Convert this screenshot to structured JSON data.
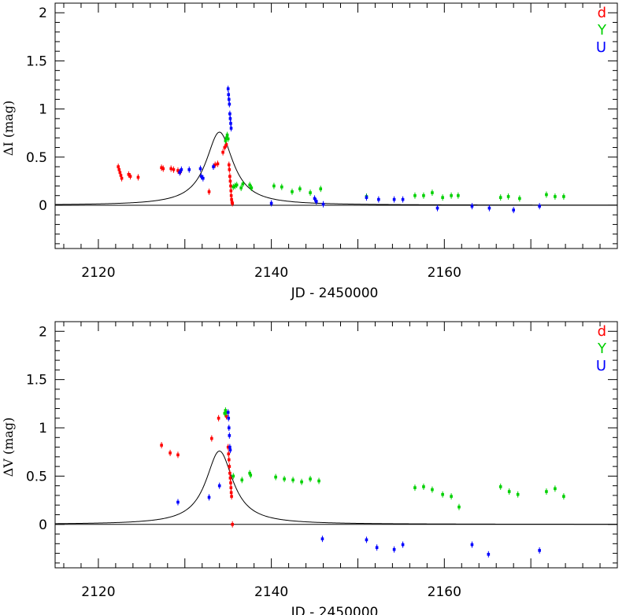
{
  "chart_data": [
    {
      "type": "scatter",
      "panel": "top",
      "xlabel": "JD - 2450000",
      "ylabel": "ΔI (mag)",
      "xlim": [
        2115,
        2180
      ],
      "ylim": [
        -0.45,
        2.1
      ],
      "xticks": [
        2120,
        2140,
        2160
      ],
      "yticks": [
        0,
        0.5,
        1,
        1.5,
        2
      ],
      "xtick_labels": [
        "2120",
        "2140",
        "2160"
      ],
      "ytick_labels": [
        "0",
        "0.5",
        "1",
        "1.5",
        "2"
      ],
      "legend": {
        "placement": "top-right",
        "labels": [
          "d",
          "Y",
          "U"
        ]
      },
      "model_curve": {
        "t0": 2134.0,
        "peak": 0.76,
        "tau": 1.9,
        "baseline": 0.0
      },
      "series": [
        {
          "name": "d",
          "color": "#ff0000",
          "points": [
            [
              2122.3,
              0.4
            ],
            [
              2122.4,
              0.37
            ],
            [
              2122.5,
              0.34
            ],
            [
              2122.6,
              0.31
            ],
            [
              2122.7,
              0.28
            ],
            [
              2123.5,
              0.32
            ],
            [
              2123.7,
              0.3
            ],
            [
              2124.6,
              0.29
            ],
            [
              2127.3,
              0.39
            ],
            [
              2127.5,
              0.38
            ],
            [
              2128.4,
              0.38
            ],
            [
              2128.7,
              0.37
            ],
            [
              2129.2,
              0.36
            ],
            [
              2129.5,
              0.35
            ],
            [
              2132.8,
              0.14
            ],
            [
              2133.5,
              0.42
            ],
            [
              2133.8,
              0.43
            ],
            [
              2134.4,
              0.55
            ],
            [
              2134.6,
              0.6
            ],
            [
              2134.8,
              0.63
            ],
            [
              2135.1,
              0.42
            ],
            [
              2135.15,
              0.37
            ],
            [
              2135.2,
              0.3
            ],
            [
              2135.25,
              0.25
            ],
            [
              2135.3,
              0.2
            ],
            [
              2135.33,
              0.15
            ],
            [
              2135.36,
              0.1
            ],
            [
              2135.4,
              0.06
            ],
            [
              2135.45,
              0.03
            ],
            [
              2135.5,
              0.02
            ]
          ]
        },
        {
          "name": "Y",
          "color": "#00d000",
          "points": [
            [
              2134.7,
              0.67
            ],
            [
              2134.8,
              0.7
            ],
            [
              2134.9,
              0.73
            ],
            [
              2135.0,
              0.69
            ],
            [
              2135.6,
              0.19
            ],
            [
              2135.8,
              0.2
            ],
            [
              2136.0,
              0.21
            ],
            [
              2136.5,
              0.18
            ],
            [
              2136.7,
              0.22
            ],
            [
              2137.5,
              0.21
            ],
            [
              2137.7,
              0.18
            ],
            [
              2140.3,
              0.2
            ],
            [
              2141.2,
              0.19
            ],
            [
              2142.4,
              0.14
            ],
            [
              2143.3,
              0.17
            ],
            [
              2144.5,
              0.13
            ],
            [
              2145.7,
              0.17
            ],
            [
              2151.0,
              0.09
            ],
            [
              2156.6,
              0.1
            ],
            [
              2157.6,
              0.1
            ],
            [
              2158.6,
              0.13
            ],
            [
              2159.8,
              0.08
            ],
            [
              2160.8,
              0.1
            ],
            [
              2161.6,
              0.1
            ],
            [
              2166.5,
              0.08
            ],
            [
              2167.4,
              0.09
            ],
            [
              2168.7,
              0.07
            ],
            [
              2171.8,
              0.11
            ],
            [
              2172.8,
              0.09
            ],
            [
              2173.8,
              0.09
            ]
          ]
        },
        {
          "name": "U",
          "color": "#0000ff",
          "points": [
            [
              2129.4,
              0.34
            ],
            [
              2129.6,
              0.37
            ],
            [
              2130.5,
              0.37
            ],
            [
              2131.8,
              0.38
            ],
            [
              2131.9,
              0.3
            ],
            [
              2132.1,
              0.28
            ],
            [
              2133.3,
              0.4
            ],
            [
              2135.0,
              1.21
            ],
            [
              2135.05,
              1.15
            ],
            [
              2135.1,
              1.1
            ],
            [
              2135.15,
              1.05
            ],
            [
              2135.2,
              0.95
            ],
            [
              2135.25,
              0.9
            ],
            [
              2135.3,
              0.85
            ],
            [
              2135.35,
              0.8
            ],
            [
              2140.0,
              0.02
            ],
            [
              2145.0,
              0.07
            ],
            [
              2145.2,
              0.04
            ],
            [
              2146.0,
              0.01
            ],
            [
              2151.0,
              0.08
            ],
            [
              2152.4,
              0.06
            ],
            [
              2154.2,
              0.06
            ],
            [
              2155.2,
              0.06
            ],
            [
              2159.2,
              -0.03
            ],
            [
              2163.2,
              -0.01
            ],
            [
              2165.2,
              -0.03
            ],
            [
              2168.0,
              -0.05
            ],
            [
              2171.0,
              -0.01
            ]
          ]
        }
      ]
    },
    {
      "type": "scatter",
      "panel": "bottom",
      "xlabel": "JD - 2450000",
      "ylabel": "ΔV (mag)",
      "xlim": [
        2115,
        2180
      ],
      "ylim": [
        -0.45,
        2.1
      ],
      "xticks": [
        2120,
        2140,
        2160
      ],
      "yticks": [
        0,
        0.5,
        1,
        1.5,
        2
      ],
      "xtick_labels": [
        "2120",
        "2140",
        "2160"
      ],
      "ytick_labels": [
        "0",
        "0.5",
        "1",
        "1.5",
        "2"
      ],
      "legend": {
        "placement": "top-right",
        "labels": [
          "d",
          "Y",
          "U"
        ]
      },
      "model_curve": {
        "t0": 2134.0,
        "peak": 0.76,
        "tau": 1.9,
        "baseline": 0.0
      },
      "series": [
        {
          "name": "d",
          "color": "#ff0000",
          "points": [
            [
              2127.3,
              0.82
            ],
            [
              2128.3,
              0.74
            ],
            [
              2129.2,
              0.72
            ],
            [
              2133.1,
              0.89
            ],
            [
              2133.9,
              1.1
            ],
            [
              2134.8,
              1.12
            ],
            [
              2135.0,
              0.8
            ],
            [
              2135.05,
              0.73
            ],
            [
              2135.1,
              0.67
            ],
            [
              2135.15,
              0.6
            ],
            [
              2135.2,
              0.53
            ],
            [
              2135.25,
              0.48
            ],
            [
              2135.3,
              0.43
            ],
            [
              2135.33,
              0.38
            ],
            [
              2135.36,
              0.33
            ],
            [
              2135.4,
              0.29
            ],
            [
              2135.5,
              0.0
            ]
          ]
        },
        {
          "name": "Y",
          "color": "#00d000",
          "points": [
            [
              2134.6,
              1.15
            ],
            [
              2134.7,
              1.18
            ],
            [
              2134.8,
              1.16
            ],
            [
              2135.6,
              0.5
            ],
            [
              2136.6,
              0.46
            ],
            [
              2137.5,
              0.53
            ],
            [
              2137.6,
              0.51
            ],
            [
              2140.5,
              0.49
            ],
            [
              2141.5,
              0.47
            ],
            [
              2142.5,
              0.46
            ],
            [
              2143.5,
              0.44
            ],
            [
              2144.5,
              0.47
            ],
            [
              2145.5,
              0.45
            ],
            [
              2156.6,
              0.38
            ],
            [
              2157.6,
              0.39
            ],
            [
              2158.6,
              0.36
            ],
            [
              2159.8,
              0.31
            ],
            [
              2160.8,
              0.29
            ],
            [
              2161.7,
              0.18
            ],
            [
              2166.5,
              0.39
            ],
            [
              2167.5,
              0.34
            ],
            [
              2168.5,
              0.31
            ],
            [
              2171.8,
              0.34
            ],
            [
              2172.8,
              0.37
            ],
            [
              2173.8,
              0.29
            ]
          ]
        },
        {
          "name": "U",
          "color": "#0000ff",
          "points": [
            [
              2129.2,
              0.23
            ],
            [
              2132.8,
              0.28
            ],
            [
              2134.0,
              0.4
            ],
            [
              2135.0,
              1.16
            ],
            [
              2135.05,
              1.1
            ],
            [
              2135.1,
              1.0
            ],
            [
              2135.15,
              0.92
            ],
            [
              2135.2,
              0.8
            ],
            [
              2135.25,
              0.77
            ],
            [
              2145.9,
              -0.15
            ],
            [
              2151.0,
              -0.16
            ],
            [
              2152.2,
              -0.24
            ],
            [
              2154.2,
              -0.26
            ],
            [
              2155.2,
              -0.21
            ],
            [
              2163.2,
              -0.21
            ],
            [
              2165.1,
              -0.31
            ],
            [
              2171.0,
              -0.27
            ]
          ]
        }
      ]
    }
  ],
  "colors": {
    "d": "#ff0000",
    "Y": "#00d000",
    "U": "#0000ff",
    "axes": "#000000"
  }
}
